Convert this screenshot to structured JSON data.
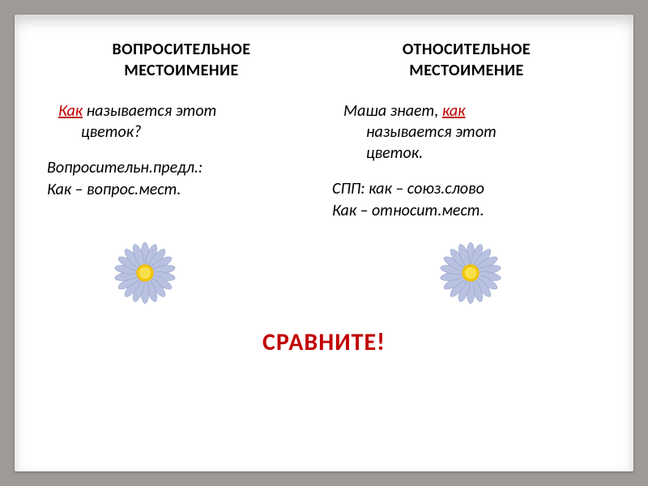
{
  "left": {
    "title_l1": "ВОПРОСИТЕЛЬНОЕ",
    "title_l2": "МЕСТОИМЕНИЕ",
    "ex_kw": "Как",
    "ex_rest1": " называется этот",
    "ex_rest2": "цветок?",
    "an_l1": "Вопросительн.предл.:",
    "an_l2": "Как – вопрос.мест."
  },
  "right": {
    "title_l1": "ОТНОСИТЕЛЬНОЕ",
    "title_l2": "МЕСТОИМЕНИЕ",
    "ex_pre": "Маша знает, ",
    "ex_kw": "как",
    "ex_rest2": "называется этот",
    "ex_rest3": "цветок.",
    "an_l1": "СПП: как – союз.слово",
    "an_l2": "Как – относит.мест."
  },
  "compare": "СРАВНИТЕ!",
  "flower": {
    "petal_fill": "#b8c2e0",
    "petal_stroke": "#8a98c8",
    "center_outer": "#f2c200",
    "center_inner": "#f7e04a",
    "petal_count": 18
  }
}
